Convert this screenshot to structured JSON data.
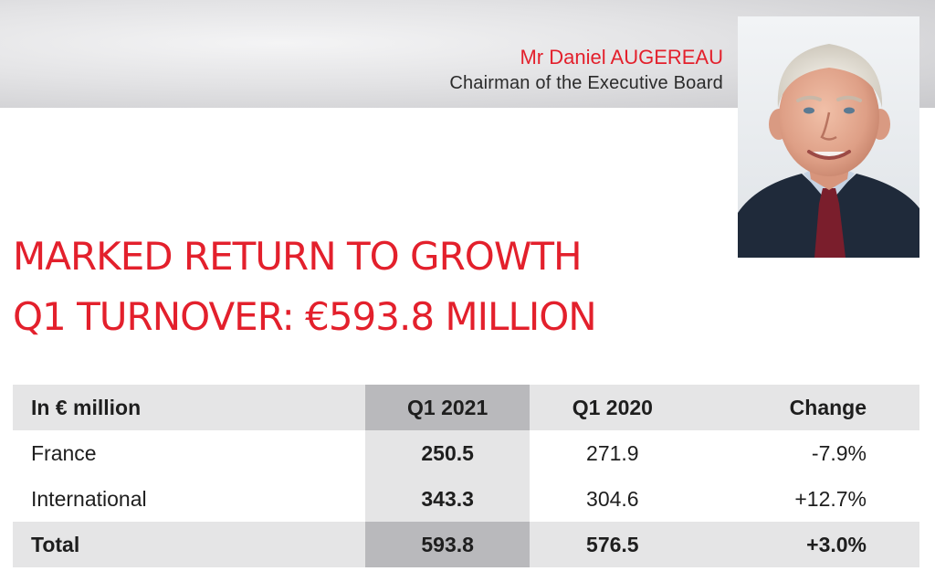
{
  "executive": {
    "name": "Mr Daniel AUGEREAU",
    "role": "Chairman of the Executive Board"
  },
  "headline": {
    "line1": "MARKED RETURN TO GROWTH",
    "line2": "Q1 TURNOVER: €593.8 MILLION"
  },
  "colors": {
    "accent_red": "#e3202c",
    "header_grey": "#e5e5e6",
    "highlight_grey": "#b9b9bc"
  },
  "table": {
    "headers": [
      "In € million",
      "Q1 2021",
      "Q1 2020",
      "Change"
    ],
    "rows": [
      {
        "label": "France",
        "q1_2021": "250.5",
        "q1_2020": "271.9",
        "change": "-7.9%"
      },
      {
        "label": "International",
        "q1_2021": "343.3",
        "q1_2020": "304.6",
        "change": "+12.7%"
      }
    ],
    "total": {
      "label": "Total",
      "q1_2021": "593.8",
      "q1_2020": "576.5",
      "change": "+3.0%"
    }
  }
}
